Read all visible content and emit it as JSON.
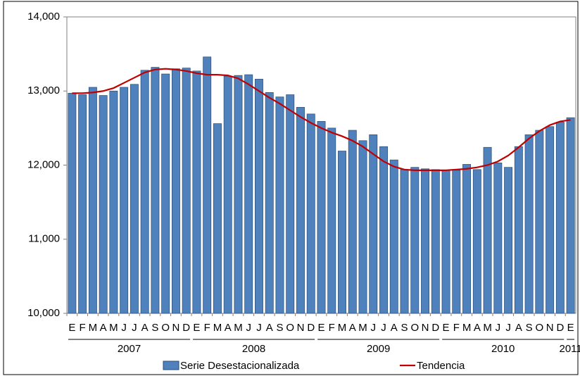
{
  "chart_data": {
    "type": "bar",
    "categories": [
      "E",
      "F",
      "M",
      "A",
      "M",
      "J",
      "J",
      "A",
      "S",
      "O",
      "N",
      "D",
      "E",
      "F",
      "M",
      "A",
      "M",
      "J",
      "J",
      "A",
      "S",
      "O",
      "N",
      "D",
      "E",
      "F",
      "M",
      "A",
      "M",
      "J",
      "J",
      "A",
      "S",
      "O",
      "N",
      "D",
      "E",
      "F",
      "M",
      "A",
      "M",
      "J",
      "J",
      "A",
      "S",
      "O",
      "N",
      "D",
      "E"
    ],
    "year_groups": [
      "2007",
      "2008",
      "2009",
      "2010",
      "2011"
    ],
    "series": [
      {
        "name": "Serie Desestacionalizada",
        "color": "#4f81bd",
        "type": "bar",
        "values": [
          12970,
          12950,
          13050,
          12940,
          13000,
          13050,
          13090,
          13280,
          13320,
          13230,
          13300,
          13310,
          13270,
          13460,
          12560,
          13200,
          13210,
          13220,
          13160,
          12980,
          12920,
          12950,
          12780,
          12690,
          12590,
          12500,
          12190,
          12470,
          12330,
          12410,
          12250,
          12070,
          11940,
          11970,
          11950,
          11940,
          11930,
          11930,
          12010,
          11940,
          12240,
          12030,
          11970,
          12250,
          12410,
          12470,
          12520,
          12580,
          12640
        ]
      },
      {
        "name": "Tendencia",
        "color": "#c00000",
        "type": "line",
        "values": [
          12970,
          12970,
          12980,
          13000,
          13040,
          13110,
          13180,
          13250,
          13290,
          13300,
          13290,
          13270,
          13240,
          13220,
          13220,
          13210,
          13170,
          13090,
          13000,
          12910,
          12830,
          12740,
          12650,
          12570,
          12500,
          12440,
          12390,
          12330,
          12250,
          12150,
          12050,
          11980,
          11940,
          11930,
          11930,
          11930,
          11930,
          11940,
          11950,
          11970,
          12000,
          12050,
          12130,
          12240,
          12360,
          12460,
          12540,
          12590,
          12610
        ]
      }
    ],
    "ylim": [
      10000,
      14000
    ],
    "yticks": [
      {
        "value": 10000,
        "label": "10,000"
      },
      {
        "value": 11000,
        "label": "11,000"
      },
      {
        "value": 12000,
        "label": "12,000"
      },
      {
        "value": 13000,
        "label": "13,000"
      },
      {
        "value": 14000,
        "label": "14,000"
      }
    ],
    "grid": false
  }
}
